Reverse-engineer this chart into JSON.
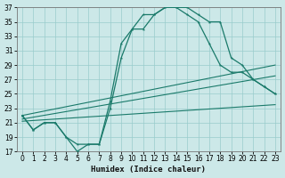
{
  "xlabel": "Humidex (Indice chaleur)",
  "xlim": [
    -0.5,
    23.5
  ],
  "ylim": [
    17,
    37
  ],
  "xticks": [
    0,
    1,
    2,
    3,
    4,
    5,
    6,
    7,
    8,
    9,
    10,
    11,
    12,
    13,
    14,
    15,
    16,
    17,
    18,
    19,
    20,
    21,
    22,
    23
  ],
  "yticks": [
    17,
    19,
    21,
    23,
    25,
    27,
    29,
    31,
    33,
    35,
    37
  ],
  "bg_color": "#cce8e8",
  "grid_color": "#99cccc",
  "line_color": "#1a7a6a",
  "line1_y": [
    22,
    20,
    21,
    21,
    19,
    17,
    18,
    18,
    24,
    32,
    34,
    36,
    36,
    37,
    37,
    37,
    36,
    35,
    35,
    30,
    29,
    27,
    26,
    25
  ],
  "line2_y": [
    22,
    20,
    21,
    21,
    19,
    18,
    18,
    18,
    23,
    30,
    34,
    34,
    36,
    37,
    37,
    36,
    35,
    32,
    29,
    28,
    28,
    27,
    26,
    25
  ],
  "line3_x": [
    0,
    23
  ],
  "line3_y": [
    21.2,
    23.5
  ],
  "line4_x": [
    0,
    23
  ],
  "line4_y": [
    21.5,
    27.5
  ],
  "line5_x": [
    0,
    23
  ],
  "line5_y": [
    22.0,
    29.0
  ],
  "tick_fontsize": 5.5,
  "xlabel_fontsize": 6.5
}
